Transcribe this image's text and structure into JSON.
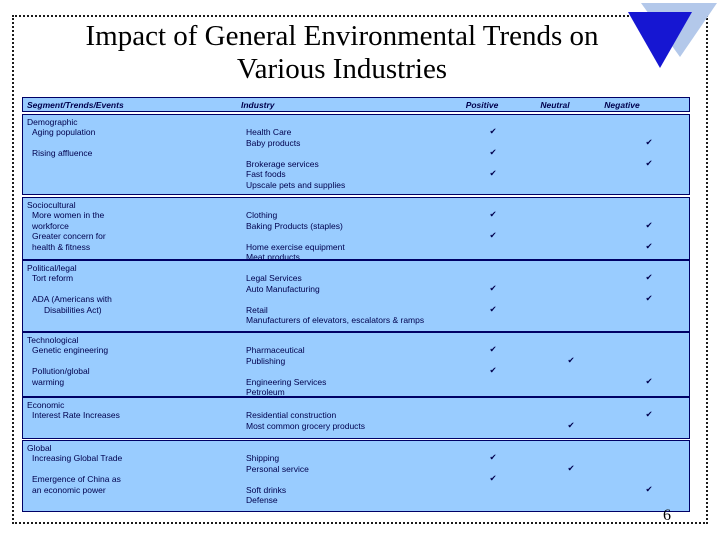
{
  "slide": {
    "title_line1": "Impact of General Environmental Trends on",
    "title_line2": "Various Industries",
    "page_number": "6"
  },
  "colors": {
    "table_bg": "#99ccff",
    "table_border": "#000066",
    "table_text": "#00004d",
    "check": "#001133",
    "triangle_dark": "#1616d2",
    "triangle_light": "#b3c8ea",
    "title_text": "#000000"
  },
  "icons": {
    "check": "✔"
  },
  "table": {
    "headers": {
      "segment": "Segment/Trends/Events",
      "industry": "Industry",
      "positive": "Positive",
      "neutral": "Neutral",
      "negative": "Negative"
    },
    "sections": [
      {
        "name": "Demographic",
        "lines": [
          {
            "seg": "Demographic",
            "level": 0
          },
          {
            "seg": "Aging population",
            "level": 1,
            "industry": "Health Care",
            "mark": "positive"
          },
          {
            "industry": "Baby products",
            "mark": "negative"
          },
          {
            "seg": "Rising affluence",
            "level": 1,
            "mark": "positive"
          },
          {
            "industry": "Brokerage services",
            "mark": "negative"
          },
          {
            "industry": "Fast foods",
            "mark": "positive"
          },
          {
            "industry": "Upscale pets and supplies"
          }
        ]
      },
      {
        "name": "Sociocultural",
        "lines": [
          {
            "seg": "Sociocultural",
            "level": 0
          },
          {
            "seg": "More women in the",
            "level": 1,
            "industry": "Clothing",
            "mark": "positive"
          },
          {
            "seg": "workforce",
            "level": 1,
            "industry": "Baking Products (staples)",
            "mark": "negative"
          },
          {
            "seg": "Greater concern for",
            "level": 1,
            "mark": "positive"
          },
          {
            "seg": "health & fitness",
            "level": 1,
            "industry": "Home exercise equipment",
            "mark": "negative"
          },
          {
            "industry": "Meat products"
          }
        ]
      },
      {
        "name": "Political/legal",
        "lines": [
          {
            "seg": "Political/legal",
            "level": 0
          },
          {
            "seg": "Tort reform",
            "level": 1,
            "industry": "Legal Services",
            "mark": "negative"
          },
          {
            "industry": "Auto Manufacturing",
            "mark": "positive"
          },
          {
            "seg": "ADA (Americans with",
            "level": 1,
            "mark": "negative"
          },
          {
            "seg": "Disabilities Act)",
            "level": 2,
            "industry": "Retail",
            "mark": "positive"
          },
          {
            "industry": "Manufacturers of elevators, escalators & ramps"
          }
        ]
      },
      {
        "name": "Technological",
        "lines": [
          {
            "seg": "Technological",
            "level": 0
          },
          {
            "seg": "Genetic engineering",
            "level": 1,
            "industry": "Pharmaceutical",
            "mark": "positive"
          },
          {
            "industry": "Publishing",
            "mark": "neutral"
          },
          {
            "seg": "Pollution/global",
            "level": 1,
            "mark": "positive"
          },
          {
            "seg": "warming",
            "level": 1,
            "industry": "Engineering Services",
            "mark": "negative"
          },
          {
            "industry": "Petroleum"
          }
        ]
      },
      {
        "name": "Economic",
        "lines": [
          {
            "seg": "Economic",
            "level": 0
          },
          {
            "seg": "Interest Rate Increases",
            "level": 1,
            "industry": "Residential construction",
            "mark": "negative"
          },
          {
            "industry": "Most common grocery products",
            "mark": "neutral"
          }
        ]
      },
      {
        "name": "Global",
        "lines": [
          {
            "seg": "Global",
            "level": 0
          },
          {
            "seg": "Increasing Global Trade",
            "level": 1,
            "industry": "Shipping",
            "mark": "positive"
          },
          {
            "industry": "Personal service",
            "mark": "neutral"
          },
          {
            "seg": "Emergence of China as",
            "level": 1,
            "mark": "positive"
          },
          {
            "seg": "an economic power",
            "level": 1,
            "industry": "Soft drinks",
            "mark": "negative"
          },
          {
            "industry": "Defense"
          }
        ]
      }
    ]
  }
}
